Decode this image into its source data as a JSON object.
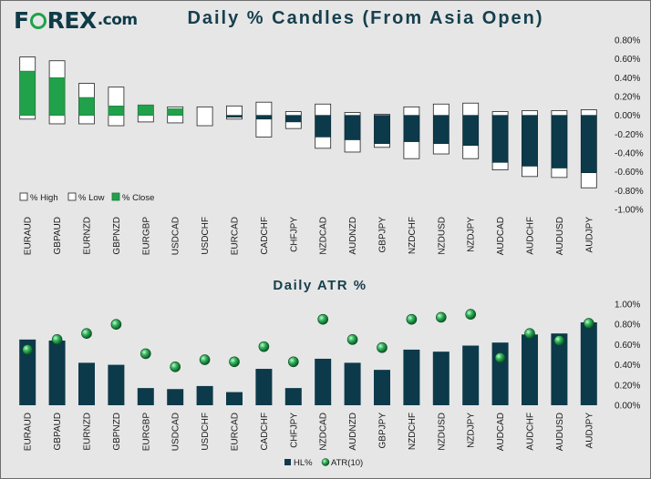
{
  "brand": {
    "logo_pre": "F",
    "logo_post": "REX",
    "logo_suffix": ".com",
    "ring_color": "#21a14a",
    "text_color": "#0f3b48"
  },
  "chart_data": [
    {
      "type": "candlestick",
      "title": "Daily % Candles (From Asia Open)",
      "categories": [
        "EURAUD",
        "GBPAUD",
        "EURNZD",
        "GBPNZD",
        "EURGBP",
        "USDCAD",
        "USDCHF",
        "EURCAD",
        "CADCHF",
        "CHFJPY",
        "NZDCAD",
        "AUDNZD",
        "GBPJPY",
        "NZDCHF",
        "NZDUSD",
        "NZDJPY",
        "AUDCAD",
        "AUDCHF",
        "AUDUSD",
        "AUDJPY"
      ],
      "high": [
        0.62,
        0.58,
        0.34,
        0.3,
        0.11,
        0.09,
        0.09,
        0.1,
        0.14,
        0.04,
        0.12,
        0.03,
        0.01,
        0.09,
        0.12,
        0.13,
        0.04,
        0.05,
        0.05,
        0.06
      ],
      "low": [
        -0.04,
        -0.09,
        -0.09,
        -0.11,
        -0.07,
        -0.08,
        -0.11,
        -0.04,
        -0.23,
        -0.14,
        -0.35,
        -0.39,
        -0.34,
        -0.46,
        -0.41,
        -0.46,
        -0.58,
        -0.65,
        -0.66,
        -0.77
      ],
      "close": [
        0.47,
        0.4,
        0.19,
        0.1,
        0.11,
        0.07,
        0.0,
        -0.02,
        -0.04,
        -0.07,
        -0.23,
        -0.26,
        -0.3,
        -0.28,
        -0.3,
        -0.32,
        -0.5,
        -0.54,
        -0.56,
        -0.61
      ],
      "ylim": [
        -1.0,
        0.8
      ],
      "yticks": [
        "0.80%",
        "0.60%",
        "0.40%",
        "0.20%",
        "0.00%",
        "-0.20%",
        "-0.40%",
        "-0.60%",
        "-0.80%",
        "-1.00%"
      ],
      "legend": [
        "% High",
        "% Low",
        "% Close"
      ],
      "legend_position": "lower-left",
      "colors": {
        "up": "#21a14a",
        "down": "#0c3a4a",
        "range": "#ffffff",
        "edge": "#222222"
      }
    },
    {
      "type": "bar",
      "title": "Daily ATR %",
      "categories": [
        "EURAUD",
        "GBPAUD",
        "EURNZD",
        "GBPNZD",
        "EURGBP",
        "USDCAD",
        "USDCHF",
        "EURCAD",
        "CADCHF",
        "CHFJPY",
        "NZDCAD",
        "AUDNZD",
        "GBPJPY",
        "NZDCHF",
        "NZDUSD",
        "NZDJPY",
        "AUDCAD",
        "AUDCHF",
        "AUDUSD",
        "AUDJPY"
      ],
      "series": [
        {
          "name": "HL%",
          "type": "bar",
          "values": [
            0.65,
            0.64,
            0.42,
            0.4,
            0.17,
            0.16,
            0.19,
            0.13,
            0.36,
            0.17,
            0.46,
            0.42,
            0.35,
            0.55,
            0.53,
            0.59,
            0.62,
            0.7,
            0.71,
            0.82
          ]
        },
        {
          "name": "ATR(10)",
          "type": "marker",
          "values": [
            0.55,
            0.65,
            0.71,
            0.8,
            0.51,
            0.38,
            0.45,
            0.43,
            0.58,
            0.43,
            0.85,
            0.65,
            0.57,
            0.85,
            0.87,
            0.9,
            0.47,
            0.71,
            0.64,
            0.81
          ]
        }
      ],
      "ylim": [
        0.0,
        1.0
      ],
      "yticks": [
        "1.00%",
        "0.80%",
        "0.60%",
        "0.40%",
        "0.20%",
        "0.00%"
      ],
      "legend": [
        "HL%",
        "ATR(10)"
      ],
      "legend_position": "bottom",
      "colors": {
        "bar": "#0c3a4a",
        "marker": "#1f9a48"
      }
    }
  ]
}
